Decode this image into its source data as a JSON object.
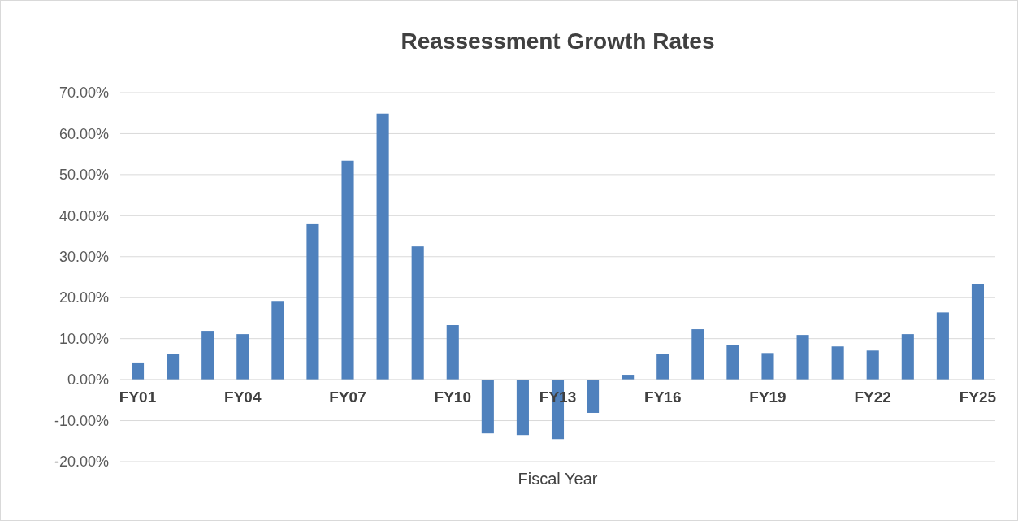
{
  "chart_data": {
    "type": "bar",
    "title": "Reassessment Growth Rates",
    "xlabel": "Fiscal Year",
    "categories": [
      "FY01",
      null,
      null,
      "FY04",
      null,
      null,
      "FY07",
      null,
      null,
      "FY10",
      null,
      null,
      "FY13",
      null,
      null,
      "FY16",
      null,
      null,
      "FY19",
      null,
      null,
      "FY22",
      null,
      null,
      "FY25"
    ],
    "values": [
      4.2,
      6.2,
      11.9,
      11.1,
      19.2,
      38.1,
      53.4,
      64.9,
      32.5,
      13.3,
      -13.1,
      -13.5,
      -14.5,
      -8.1,
      1.2,
      6.3,
      12.3,
      8.5,
      6.5,
      10.9,
      8.1,
      7.1,
      11.1,
      16.4,
      23.3
    ],
    "color": "#4f81bd",
    "ylim": [
      -20,
      70
    ],
    "yticks": [
      {
        "value": -20,
        "label": "-20.00%"
      },
      {
        "value": -10,
        "label": "-10.00%"
      },
      {
        "value": 0,
        "label": "0.00%"
      },
      {
        "value": 10,
        "label": "10.00%"
      },
      {
        "value": 20,
        "label": "20.00%"
      },
      {
        "value": 30,
        "label": "30.00%"
      },
      {
        "value": 40,
        "label": "40.00%"
      },
      {
        "value": 50,
        "label": "50.00%"
      },
      {
        "value": 60,
        "label": "60.00%"
      },
      {
        "value": 70,
        "label": "70.00%"
      }
    ],
    "grid": "y"
  }
}
